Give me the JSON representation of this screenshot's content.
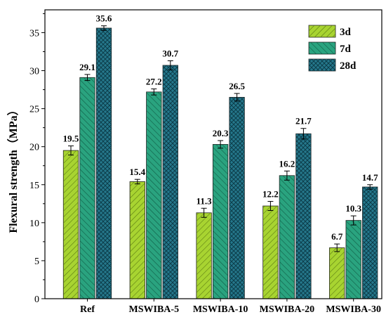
{
  "chart_data": {
    "type": "bar",
    "categories": [
      "Ref",
      "MSWIBA-5",
      "MSWIBA-10",
      "MSWIBA-20",
      "MSWIBA-30"
    ],
    "series": [
      {
        "name": "3d",
        "values": [
          19.5,
          15.4,
          11.3,
          12.2,
          6.7
        ],
        "errors": [
          0.6,
          0.3,
          0.6,
          0.6,
          0.5
        ],
        "color": "#a8d431",
        "hatch": "#5b7a12"
      },
      {
        "name": "7d",
        "values": [
          29.1,
          27.2,
          20.3,
          16.2,
          10.3
        ],
        "errors": [
          0.4,
          0.4,
          0.5,
          0.6,
          0.6
        ],
        "color": "#2aa37f",
        "hatch": "#0f5a44"
      },
      {
        "name": "28d",
        "values": [
          35.6,
          30.7,
          26.5,
          21.7,
          14.7
        ],
        "errors": [
          0.3,
          0.6,
          0.5,
          0.7,
          0.3
        ],
        "color": "#25788c",
        "hatch": "#0c3d4a"
      }
    ],
    "value_labels": [
      [
        "19.5",
        "15.4",
        "11.3",
        "12.2",
        "6.7"
      ],
      [
        "29.1",
        "27.2",
        "20.3",
        "16.2",
        "10.3"
      ],
      [
        "35.6",
        "30.7",
        "26.5",
        "21.7",
        "14.7"
      ]
    ],
    "ylabel": "Flexural strength（MPa）",
    "xlabel": "",
    "ylim": [
      0,
      38
    ],
    "yticks": [
      0,
      5,
      10,
      15,
      20,
      25,
      30,
      35
    ],
    "grid": false,
    "legend_position": "top-right"
  }
}
